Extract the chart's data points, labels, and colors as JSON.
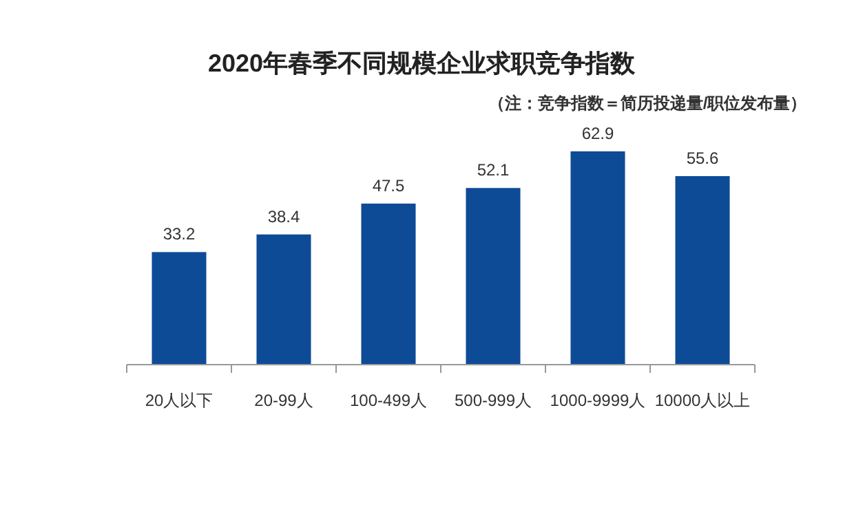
{
  "chart_data": {
    "type": "bar",
    "title": "2020年春季不同规模企业求职竞争指数",
    "subtitle": "（注：竞争指数＝简历投递量/职位发布量）",
    "categories": [
      "20人以下",
      "20-99人",
      "100-499人",
      "500-999人",
      "1000-9999人",
      "10000人以上"
    ],
    "values": [
      33.2,
      38.4,
      47.5,
      52.1,
      62.9,
      55.6
    ],
    "color": "#0e4b97",
    "data_labels": true
  }
}
